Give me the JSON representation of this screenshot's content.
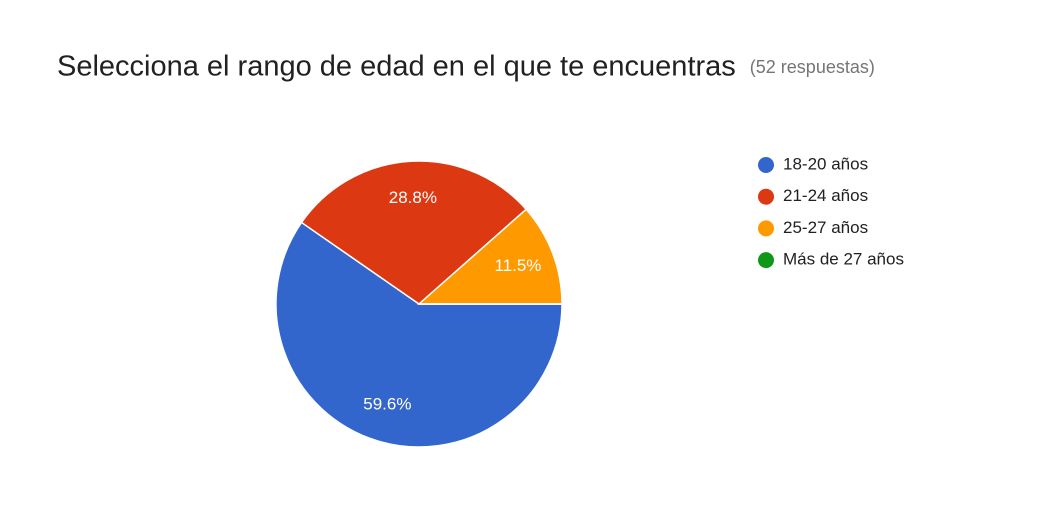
{
  "chart_data": {
    "type": "pie",
    "title": "Selecciona el rango de edad en el que te encuentras",
    "subtitle": "(52 respuestas)",
    "categories": [
      "18-20 años",
      "21-24 años",
      "25-27 años",
      "Más de 27 años"
    ],
    "values": [
      59.6,
      28.8,
      11.5,
      0
    ],
    "value_labels": [
      "59.6%",
      "28.8%",
      "11.5%",
      null
    ],
    "colors": [
      "#3366cc",
      "#dc3912",
      "#ff9900",
      "#109618"
    ],
    "legend": "right"
  }
}
